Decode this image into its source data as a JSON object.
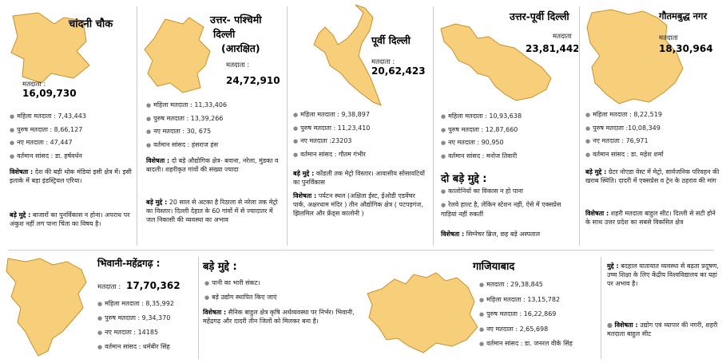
{
  "panels": {
    "chandni": {
      "title": "चांदनी चौक",
      "voters_label": "मतदाता :",
      "voters": "16,09,730",
      "stats": [
        "महिला मतदाता : 7,43,443",
        "पुरुष मतदाता : 8,66,127",
        "नए मतदाता : 47,447",
        "वर्तमान सांसद : डा. हर्षवर्धन"
      ],
      "feature_label": "विशेषता :",
      "feature": "देश की बड़ी थोक मंडियां इसी क्षेत्र में। इसी इलाके में बड़ा इंडस्ट्रियल एरिया।",
      "issues_label": "बड़े मुद्दे :",
      "issues": "बाजारों का पुनर्विकास न होना। अपराध पर अंकुश नहीं लग पाना चिंता का विषय है।"
    },
    "northwest": {
      "title_line1": "उत्तर- पश्चिमी",
      "title_line2": "दिल्ली",
      "title_line3": "(आरक्षित)",
      "voters_label": "मतदाता :",
      "voters": "24,72,910",
      "stats": [
        "महिला मतदाता : 11,33,406",
        "पुरुष मतदाता : 13,39,266",
        "नए मतदाता : 30, 675",
        "वर्तमान सांसद : हंसराज हंस"
      ],
      "feature_label": "विशेषता :",
      "feature": "दो बड़े औद्योगिक क्षेत्र- बवाना, नरेला, मुंडका व बादली। शहरीकृत गांवों की संख्या ज्यादा",
      "issues_label": "बड़े मुद्दे :",
      "issues": "20 साल से अटका है रिठाला से नरेला तक मेट्रो का विस्तार। दिल्ली देहात के 60 गांवों में से ज्यादातर में जल निकासी की व्यवस्था का अभाव"
    },
    "east": {
      "title": "पूर्वी दिल्ली",
      "voters_label": "मतदाता :",
      "voters": "20,62,423",
      "stats": [
        "महिला मतदाता : 9,38,897",
        "पुरुष मतदाता : 11,23,410",
        "नए मतदाता :23203",
        "वर्तमान सांसद : गौतम गंभीर"
      ],
      "issues_label": "बड़े मुद्दे :",
      "issues": "कोंडली तक मेट्रो विस्तार। आवासीय सोसायटियों का पुनर्विकास",
      "feature_label": "विशेषता :",
      "feature": "पर्यटन स्थल (अक्षिता ईस्ट, ईओडी एडवेंचर पार्क, अक्षरधाम मंदिर ) तीन औद्योगिक क्षेत्र ( पटपड़गंज, झिलमिल और फ्रेंड्स कालोनी )"
    },
    "northeast": {
      "title": "उत्तर-पूर्वी दिल्ली",
      "voters_label": "मतदाता",
      "voters": "23,81,442",
      "stats": [
        "महिला मतदाता : 10,93,638",
        "पुरुष मतदाता : 12,87,660",
        "नए मतदाता : 90,950",
        "वर्तमान सांसद : मनोज तिवारी"
      ],
      "issues_heading": "दो बड़े मुद्दे :",
      "issues": [
        "कालोनियों का विकास न हो पाना",
        "रेलवे हाल्ट है, लेकिन स्टेशन नहीं, ऐसे में एक्सप्रेस गाड़ियां नहीं रुकतीं"
      ],
      "feature_label": "विशेषता :",
      "feature": "सिग्नेचर ब्रिज, छह बड़े अस्पताल"
    },
    "gautam": {
      "title": "गौतमबुद्ध नगर",
      "voters_label": "मतदाता",
      "voters": "18,30,964",
      "stats": [
        "महिला मतदाता : 8,22,519",
        "पुरुष मतदाता :10,08,349",
        "नए मतदाता : 76,971",
        "वर्तमान सांसद : डा. महेश शर्मा"
      ],
      "issues_label": "बड़े मुद्दे :",
      "issues": "ग्रेटर नोएडा वेस्ट में मेट्रो, सार्वजनिक परिवहन की खराब स्थिति। दादरी में एक्सप्रेस व ट्रेन के ठहराव की मांग",
      "feature_label": "विशेषता :",
      "feature": "शहरी मतदाता बाहुल सीट। दिल्ली से सटी होने के साथ उत्तर प्रदेश का सबसे विकसित क्षेत्र"
    },
    "bhiwani": {
      "title": "भिवानी-महेंद्रगढ़ :",
      "voters_label": "मतदाता :",
      "voters": "17,70,362",
      "stats": [
        "महिला मतदाता : 8,35,992",
        "पुरुष मतदाता : 9,34,370",
        "नए मतदाता : 14185",
        "वर्तमान सांसद : धर्मबीर सिंह"
      ],
      "issues_heading": "बड़े मुद्दे :",
      "issues": [
        "पानी का भारी संकट।",
        "बड़े उद्योग स्थापित किए जाएं"
      ],
      "feature_label": "विशेषता :",
      "feature": "सैनिक बाहुल क्षेत्र कृषि अर्थव्यवस्था पर निर्भर। भिवानी, महेंद्रगढ़ और दादरी तीन जिलों को मिलकर बना है।"
    },
    "ghaziabad": {
      "title": "गाजियाबाद",
      "stats": [
        "मतदाता : 29,38,845",
        "महिला मतदाता : 13,15,782",
        "पुरुष मतदाता : 16,22,869",
        "नए मतदाता : 2,65,698",
        "वर्तमान सांसद : डा. जनरल वीके सिंह"
      ],
      "issues_label": "मुद्दे :",
      "issues": "बदहाल यातायात व्यवस्था से बढ़ता प्रदूषण, उच्च शिक्षा के लिए केंद्रीय विश्वविद्यालय का यहां पर अभाव है।",
      "feature_label": "विशेषता :",
      "feature": "उद्योग एवं व्यापार की नगरी, शहरी मतदाता बाहुल सीट"
    }
  },
  "colors": {
    "map_fill": "#f7cf7a",
    "map_stroke": "#c98f2c",
    "rule": "#cccccc"
  }
}
